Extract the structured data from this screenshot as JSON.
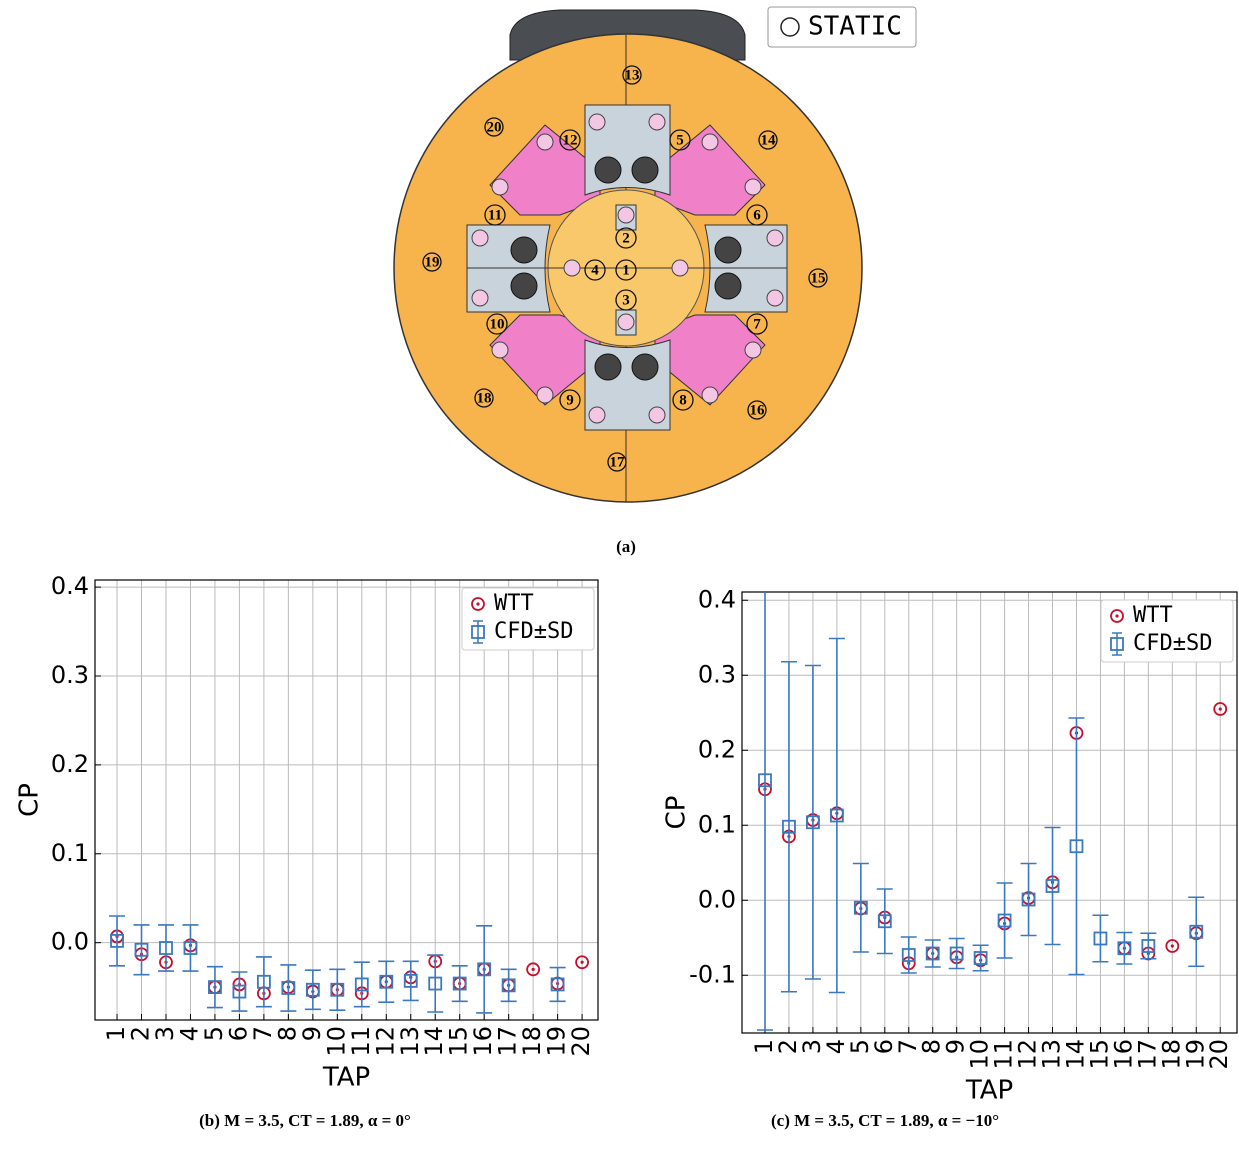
{
  "figure_a": {
    "legend": "STATIC",
    "caption": "(a)",
    "taps": [
      "1",
      "2",
      "3",
      "4",
      "5",
      "6",
      "7",
      "8",
      "9",
      "10",
      "11",
      "12",
      "13",
      "14",
      "15",
      "16",
      "17",
      "18",
      "19",
      "20"
    ]
  },
  "chart_data": [
    {
      "type": "errorbar",
      "caption": "(b) M = 3.5, CT = 1.89, α = 0°",
      "xlabel": "TAP",
      "ylabel": "CP",
      "x": [
        1,
        2,
        3,
        4,
        5,
        6,
        7,
        8,
        9,
        10,
        11,
        12,
        13,
        14,
        15,
        16,
        17,
        18,
        19,
        20
      ],
      "xlim": [
        0.1,
        20.65
      ],
      "xticks": [
        1,
        2,
        3,
        4,
        5,
        6,
        7,
        8,
        9,
        10,
        11,
        12,
        13,
        14,
        15,
        16,
        17,
        18,
        19,
        20
      ],
      "ylim": [
        -0.087,
        0.408
      ],
      "yticks": [
        {
          "value": 0,
          "label": "0.0"
        },
        0.1,
        0.2,
        0.3,
        0.4
      ],
      "grid": true,
      "legend": "upper right",
      "series": [
        {
          "name": "WTT",
          "color": "#c8102e",
          "marker": "circle",
          "values": [
            0.007,
            -0.013,
            -0.022,
            -0.003,
            -0.05,
            -0.047,
            -0.057,
            -0.05,
            -0.055,
            -0.053,
            -0.057,
            -0.044,
            -0.039,
            -0.021,
            -0.046,
            -0.03,
            -0.048,
            -0.03,
            -0.046,
            -0.022
          ]
        },
        {
          "name": "CFD±SD",
          "color": "#3a78c0",
          "marker": "square",
          "values": [
            0.002,
            -0.008,
            -0.006,
            -0.006,
            -0.05,
            -0.055,
            -0.044,
            -0.051,
            -0.053,
            -0.053,
            -0.047,
            -0.044,
            -0.043,
            -0.046,
            -0.046,
            -0.03,
            -0.048,
            null,
            -0.047,
            null
          ],
          "errors": [
            0.028,
            0.028,
            0.026,
            0.026,
            0.023,
            0.022,
            0.028,
            0.026,
            0.022,
            0.023,
            0.025,
            0.023,
            0.022,
            0.032,
            0.02,
            0.049,
            0.018,
            null,
            0.019,
            null
          ]
        }
      ]
    },
    {
      "type": "errorbar",
      "caption": "(c) M = 3.5, CT = 1.89, α = −10°",
      "xlabel": "TAP",
      "ylabel": "CP",
      "x": [
        1,
        2,
        3,
        4,
        5,
        6,
        7,
        8,
        9,
        10,
        11,
        12,
        13,
        14,
        15,
        16,
        17,
        18,
        19,
        20
      ],
      "xlim": [
        0.04,
        20.7
      ],
      "xticks": [
        1,
        2,
        3,
        4,
        5,
        6,
        7,
        8,
        9,
        10,
        11,
        12,
        13,
        14,
        15,
        16,
        17,
        18,
        19,
        20
      ],
      "ylim": [
        -0.177,
        0.411
      ],
      "yticks": [
        -0.1,
        {
          "value": 0,
          "label": "0.0"
        },
        0.1,
        0.2,
        0.3,
        0.4
      ],
      "grid": true,
      "legend": "upper right",
      "series": [
        {
          "name": "WTT",
          "color": "#c8102e",
          "marker": "circle",
          "values": [
            0.148,
            0.085,
            0.107,
            0.116,
            -0.011,
            -0.023,
            -0.084,
            -0.071,
            -0.076,
            -0.08,
            -0.031,
            0.003,
            0.024,
            0.223,
            null,
            -0.064,
            -0.071,
            -0.061,
            -0.044,
            0.255
          ]
        },
        {
          "name": "CFD±SD",
          "color": "#3a78c0",
          "marker": "square",
          "values": [
            0.16,
            0.098,
            0.104,
            0.113,
            -0.01,
            -0.028,
            -0.073,
            -0.071,
            -0.071,
            -0.077,
            -0.027,
            0.001,
            0.019,
            0.072,
            -0.051,
            -0.064,
            -0.061,
            null,
            -0.042,
            null
          ],
          "errors": [
            0.333,
            0.22,
            0.209,
            0.236,
            0.059,
            0.043,
            0.024,
            0.018,
            0.02,
            0.017,
            0.05,
            0.048,
            0.078,
            0.171,
            0.031,
            0.021,
            0.017,
            null,
            0.046,
            null
          ]
        }
      ]
    }
  ]
}
